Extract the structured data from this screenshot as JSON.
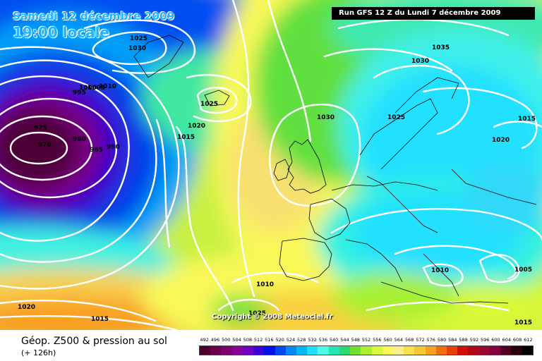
{
  "header": {
    "date": "Samedi 12 décembre 2009",
    "time": "19:00 locale",
    "run": "Run GFS 12 Z du Lundi 7 décembre 2009"
  },
  "copyright": "Copyright © 2008 Meteociel.fr",
  "footer": {
    "title": "Géop. Z500 & pression au sol",
    "horizon": "(+ 126h)"
  },
  "legend": {
    "values": [
      "492",
      "496",
      "500",
      "504",
      "508",
      "512",
      "516",
      "520",
      "524",
      "528",
      "532",
      "536",
      "540",
      "544",
      "548",
      "552",
      "556",
      "560",
      "564",
      "568",
      "572",
      "576",
      "580",
      "584",
      "588",
      "592",
      "596",
      "600",
      "604",
      "608",
      "612"
    ],
    "colors": [
      "#4b0030",
      "#6a004a",
      "#7e0070",
      "#8a009a",
      "#7200c0",
      "#3a00d8",
      "#0010e8",
      "#0048f0",
      "#0088f4",
      "#00b8f8",
      "#20e0ff",
      "#50f8e8",
      "#20e8b0",
      "#30d870",
      "#70e030",
      "#a8f030",
      "#d8f838",
      "#f8f858",
      "#f8f090",
      "#f8e050",
      "#f8c830",
      "#f8a020",
      "#f07010",
      "#e84008",
      "#d01008",
      "#b00818",
      "#980830",
      "#800040",
      "#500020",
      "#280010",
      "#000000"
    ]
  },
  "isobar_labels": [
    {
      "text": "1025"
    },
    {
      "text": "1030"
    },
    {
      "text": "1035"
    },
    {
      "text": "1030"
    },
    {
      "text": "995"
    },
    {
      "text": "1000"
    },
    {
      "text": "1005"
    },
    {
      "text": "1010"
    },
    {
      "text": "1025"
    },
    {
      "text": "975"
    },
    {
      "text": "980"
    },
    {
      "text": "985"
    },
    {
      "text": "990"
    },
    {
      "text": "970"
    },
    {
      "text": "1020"
    },
    {
      "text": "1015"
    },
    {
      "text": "1030"
    },
    {
      "text": "1025"
    },
    {
      "text": "1015"
    },
    {
      "text": "1020"
    },
    {
      "text": "1010"
    },
    {
      "text": "1010"
    },
    {
      "text": "1005"
    },
    {
      "text": "1020"
    },
    {
      "text": "1015"
    },
    {
      "text": "1025"
    },
    {
      "text": "1015"
    }
  ]
}
